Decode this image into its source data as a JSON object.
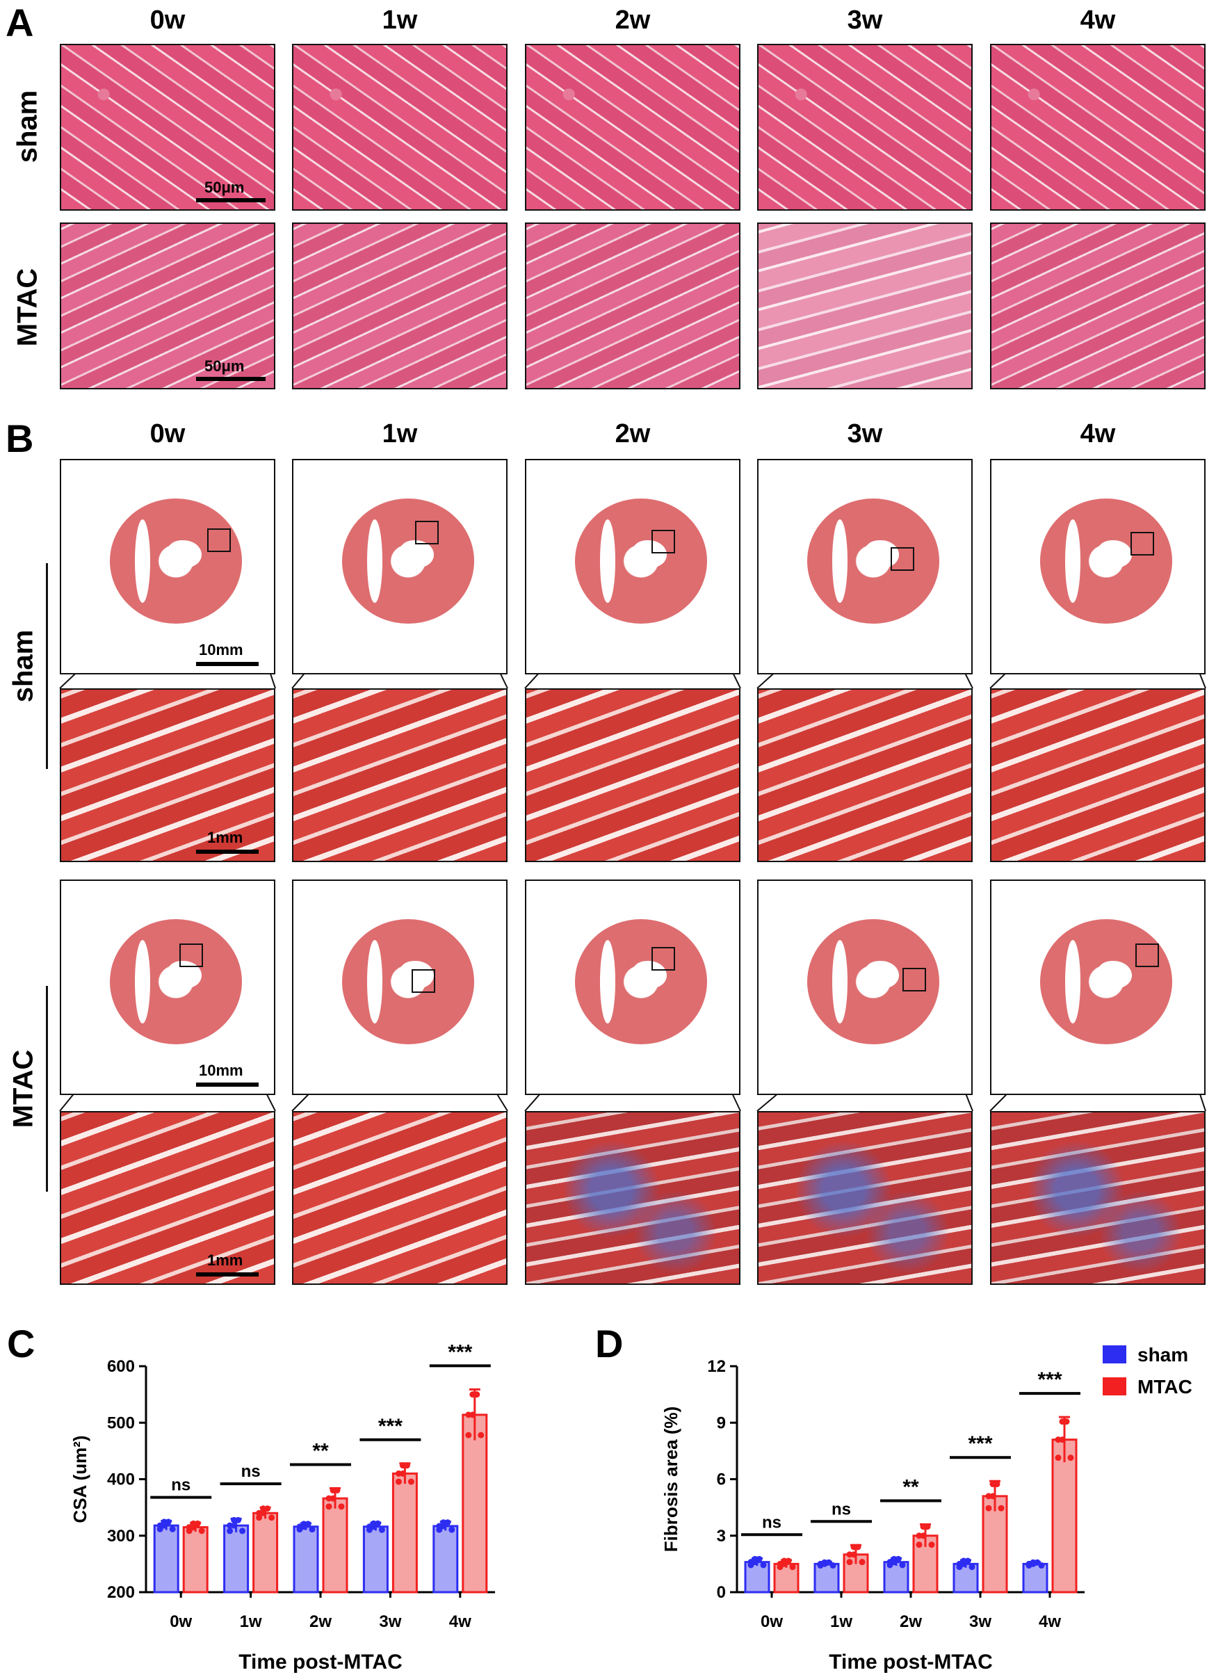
{
  "panelA": {
    "letter": "A",
    "columns": [
      "0w",
      "1w",
      "2w",
      "3w",
      "4w"
    ],
    "rows": [
      "sham",
      "MTAC"
    ],
    "scale": "50μm"
  },
  "panelB": {
    "letter": "B",
    "columns": [
      "0w",
      "1w",
      "2w",
      "3w",
      "4w"
    ],
    "rows": [
      "sham",
      "MTAC"
    ],
    "scale_whole": "10mm",
    "scale_zoom": "1mm"
  },
  "legend": {
    "items": [
      {
        "label": "sham",
        "color": "#2d2df2"
      },
      {
        "label": "MTAC",
        "color": "#f22020"
      }
    ]
  },
  "chart_data": [
    {
      "panel": "C",
      "type": "bar",
      "categories": [
        "0w",
        "1w",
        "2w",
        "3w",
        "4w"
      ],
      "series": [
        {
          "name": "sham",
          "values": [
            318,
            318,
            316,
            316,
            317
          ],
          "err": [
            8,
            12,
            6,
            7,
            8
          ],
          "color": "#2d2df2"
        },
        {
          "name": "MTAC",
          "values": [
            315,
            340,
            366,
            410,
            514
          ],
          "err": [
            8,
            10,
            18,
            18,
            45
          ],
          "color": "#f22020"
        }
      ],
      "significance": [
        "ns",
        "ns",
        "**",
        "***",
        "***"
      ],
      "ylabel": "CSA (um²)",
      "xlabel": "Time post-MTAC",
      "ylim": [
        200,
        600
      ],
      "yticks": [
        200,
        300,
        400,
        500,
        600
      ]
    },
    {
      "panel": "D",
      "type": "bar",
      "categories": [
        "0w",
        "1w",
        "2w",
        "3w",
        "4w"
      ],
      "series": [
        {
          "name": "sham",
          "values": [
            1.6,
            1.5,
            1.6,
            1.5,
            1.5
          ],
          "err": [
            0.2,
            0.1,
            0.2,
            0.2,
            0.1
          ],
          "color": "#2d2df2"
        },
        {
          "name": "MTAC",
          "values": [
            1.5,
            2.0,
            3.0,
            5.1,
            8.1
          ],
          "err": [
            0.2,
            0.5,
            0.6,
            0.8,
            1.2
          ],
          "color": "#f22020"
        }
      ],
      "significance": [
        "ns",
        "ns",
        "**",
        "***",
        "***"
      ],
      "ylabel": "Fibrosis area (%)",
      "xlabel": "Time post-MTAC",
      "ylim": [
        0,
        12
      ],
      "yticks": [
        0,
        3,
        6,
        9,
        12
      ]
    }
  ]
}
